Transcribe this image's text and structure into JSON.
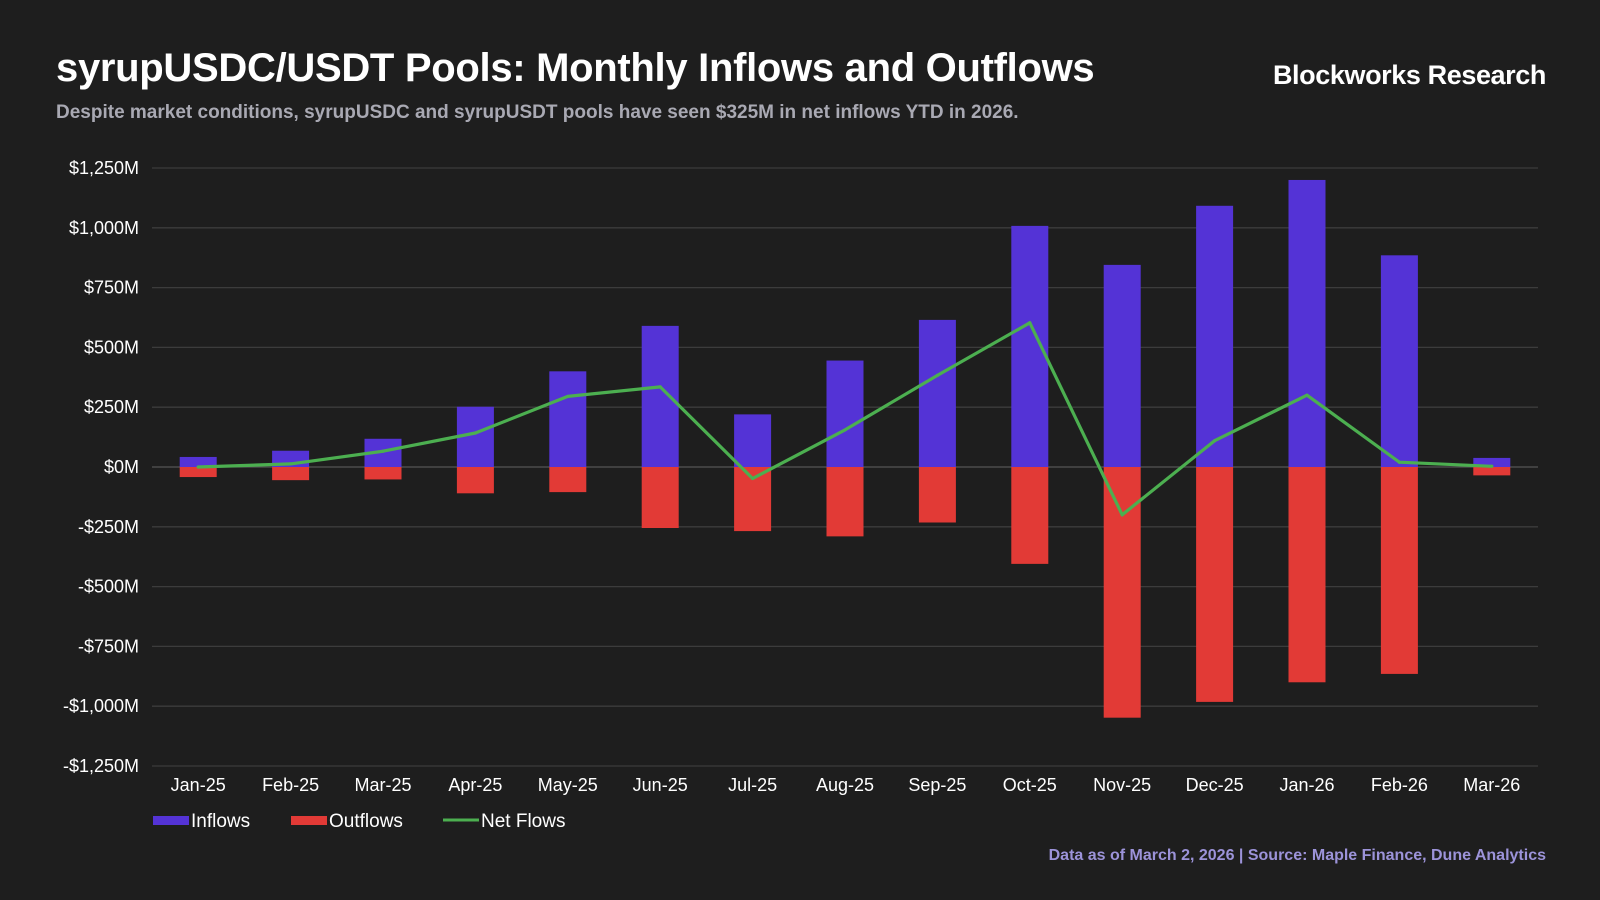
{
  "header": {
    "title": "syrupUSDC/USDT Pools: Monthly Inflows and Outflows",
    "subtitle": "Despite market conditions, syrupUSDC and syrupUSDT pools have seen $325M in net inflows YTD in 2026.",
    "brand": "Blockworks Research"
  },
  "footer": {
    "source": "Data as of March 2, 2026 | Source: Maple Finance, Dune Analytics"
  },
  "colors": {
    "inflows": "#5433d6",
    "outflows": "#e23a36",
    "net": "#4caf50",
    "grid": "#3c3c3c",
    "background": "#1e1e1e"
  },
  "chart_data": {
    "type": "bar",
    "title": "syrupUSDC/USDT Pools: Monthly Inflows and Outflows",
    "xlabel": "",
    "ylabel": "",
    "ylim": [
      -1250,
      1250
    ],
    "yticks": [
      1250,
      1000,
      750,
      500,
      250,
      0,
      -250,
      -500,
      -750,
      -1000,
      -1250
    ],
    "ytick_labels": [
      "$1,250M",
      "$1,000M",
      "$750M",
      "$500M",
      "$250M",
      "$0M",
      "-$250M",
      "-$500M",
      "-$750M",
      "-$1,000M",
      "-$1,250M"
    ],
    "grid": true,
    "legend_position": "bottom-left",
    "categories": [
      "Jan-25",
      "Feb-25",
      "Mar-25",
      "Apr-25",
      "May-25",
      "Jun-25",
      "Jul-25",
      "Aug-25",
      "Sep-25",
      "Oct-25",
      "Nov-25",
      "Dec-25",
      "Jan-26",
      "Feb-26",
      "Mar-26"
    ],
    "series": [
      {
        "name": "Inflows",
        "kind": "bar",
        "values": [
          42,
          68,
          118,
          252,
          400,
          590,
          220,
          445,
          615,
          1008,
          845,
          1092,
          1200,
          885,
          38
        ]
      },
      {
        "name": "Outflows",
        "kind": "bar",
        "values": [
          -42,
          -55,
          -52,
          -110,
          -105,
          -255,
          -268,
          -290,
          -232,
          -405,
          -1048,
          -982,
          -900,
          -865,
          -35
        ]
      },
      {
        "name": "Net Flows",
        "kind": "line",
        "values": [
          0,
          13,
          66,
          142,
          295,
          335,
          -48,
          155,
          383,
          603,
          -200,
          110,
          300,
          20,
          3
        ]
      }
    ]
  }
}
